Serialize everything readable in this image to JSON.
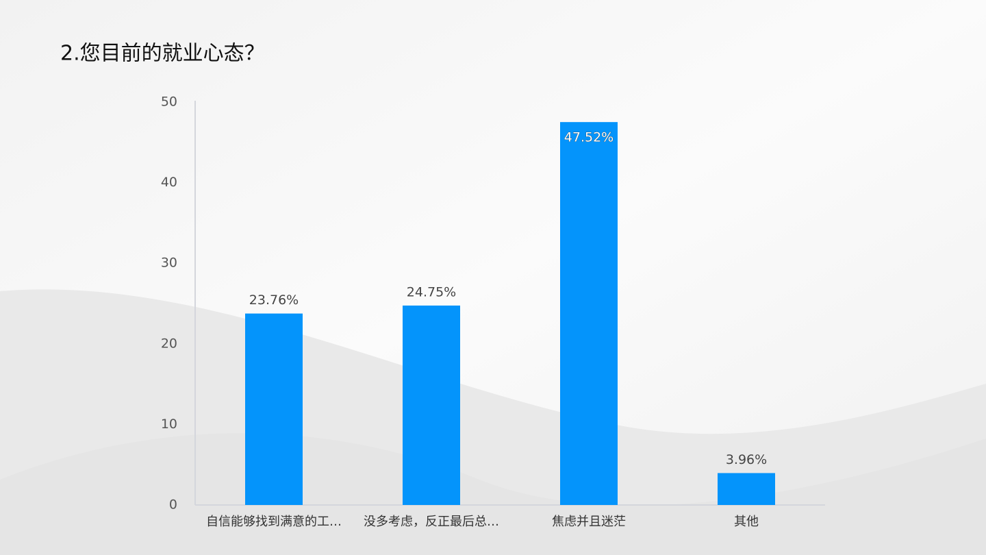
{
  "chart_data": {
    "type": "bar",
    "title": "2.您目前的就业心态？",
    "categories": [
      "自信能够找到满意的工…",
      "没多考虑，反正最后总…",
      "焦虑并且迷茫",
      "其他"
    ],
    "values": [
      23.76,
      24.75,
      47.52,
      3.96
    ],
    "value_labels": [
      "23.76%",
      "24.75%",
      "47.52%",
      "3.96%"
    ],
    "color": "#0494fb",
    "ylim": [
      0,
      50
    ],
    "yticks": [
      0,
      10,
      20,
      30,
      40,
      50
    ],
    "grid": false
  }
}
